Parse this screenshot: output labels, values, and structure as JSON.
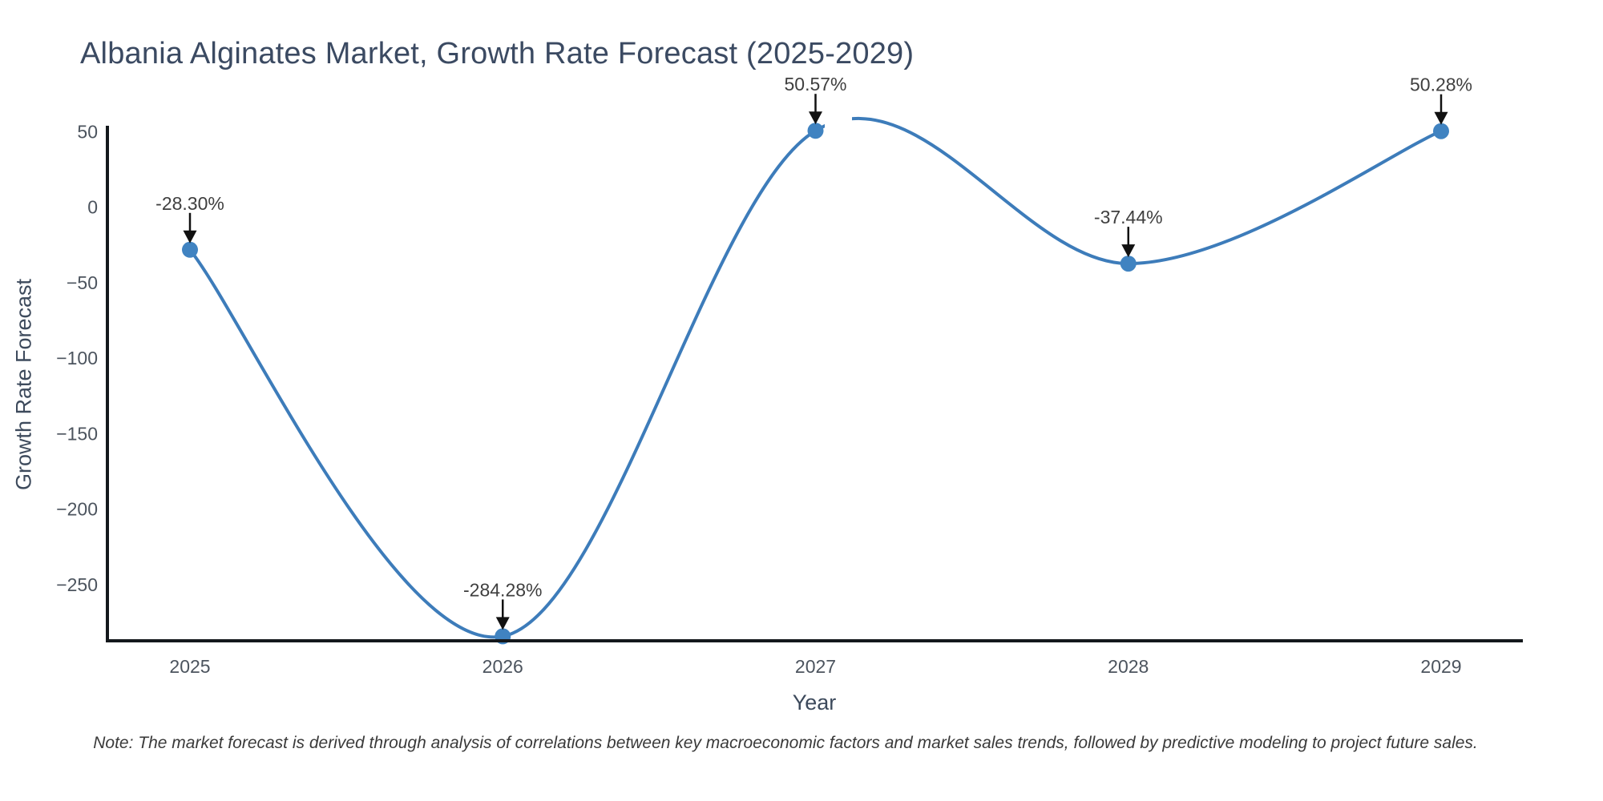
{
  "note": "Note: The market forecast is derived through analysis of correlations between key macroeconomic factors and market sales trends, followed by predictive modeling to project future sales.",
  "chart_data": {
    "type": "line",
    "line_shape": "spline",
    "title": "Albania Alginates Market, Growth Rate Forecast (2025-2029)",
    "xlabel": "Year",
    "ylabel": "Growth Rate Forecast",
    "x": [
      2025,
      2026,
      2027,
      2028,
      2029
    ],
    "values": [
      -28.3,
      -284.28,
      50.57,
      -37.44,
      50.28
    ],
    "point_labels": [
      "-28.30%",
      "-284.28%",
      "50.57%",
      "-37.44%",
      "50.28%"
    ],
    "xticks": {
      "labels": [
        "2025",
        "2026",
        "2027",
        "2028",
        "2029"
      ],
      "values": [
        2025,
        2026,
        2027,
        2028,
        2029
      ]
    },
    "yticks": {
      "labels": [
        "50",
        "0",
        "−50",
        "−100",
        "−150",
        "−200",
        "−250"
      ],
      "values": [
        50,
        0,
        -50,
        -100,
        -150,
        -200,
        -250
      ]
    },
    "ylim": [
      -288,
      53
    ],
    "xlim": [
      2024.73,
      2029.26
    ],
    "grid": false,
    "legend": "none",
    "annotations_style": "black-arrow-pointing-down-to-point",
    "colors": {
      "line": "#3d7cba",
      "marker": "#4083c1",
      "axis": "#14181c",
      "arrow": "#111111",
      "title_text": "#3b4a62",
      "tick_text": "#4c545e",
      "note_text": "#3a3a3a"
    }
  }
}
